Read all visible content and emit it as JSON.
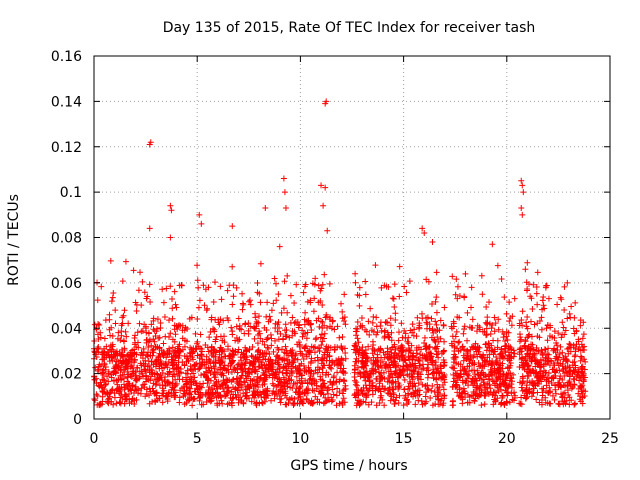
{
  "chart_data": {
    "type": "scatter",
    "title": "Day 135 of 2015, Rate Of TEC Index for receiver tash",
    "xlabel": "GPS time / hours",
    "ylabel": "ROTI / TECUs",
    "xlim": [
      0,
      25
    ],
    "ylim": [
      0,
      0.16
    ],
    "x_ticks": [
      "0",
      "5",
      "10",
      "15",
      "20",
      "25"
    ],
    "x_tick_values": [
      0,
      5,
      10,
      15,
      20,
      25
    ],
    "y_ticks": [
      "0",
      "0.02",
      "0.04",
      "0.06",
      "0.08",
      "0.1",
      "0.12",
      "0.14",
      "0.16"
    ],
    "y_tick_values": [
      0,
      0.02,
      0.04,
      0.06,
      0.08,
      0.1,
      0.12,
      0.14,
      0.16
    ],
    "grid": true,
    "marker": "+",
    "series": [
      {
        "name": "ROTI",
        "color": "#ff0000",
        "segments": [
          {
            "start": 0.0,
            "end": 12.2
          },
          {
            "start": 12.6,
            "end": 17.0
          },
          {
            "start": 17.3,
            "end": 20.4
          },
          {
            "start": 20.6,
            "end": 23.8
          }
        ],
        "outliers": [
          {
            "x": 2.7,
            "y": 0.121
          },
          {
            "x": 2.75,
            "y": 0.122
          },
          {
            "x": 11.2,
            "y": 0.139
          },
          {
            "x": 11.25,
            "y": 0.14
          },
          {
            "x": 9.2,
            "y": 0.106
          },
          {
            "x": 9.25,
            "y": 0.1
          },
          {
            "x": 9.3,
            "y": 0.093
          },
          {
            "x": 11.0,
            "y": 0.103
          },
          {
            "x": 11.1,
            "y": 0.094
          },
          {
            "x": 11.2,
            "y": 0.102
          },
          {
            "x": 20.7,
            "y": 0.105
          },
          {
            "x": 20.75,
            "y": 0.103
          },
          {
            "x": 20.8,
            "y": 0.1
          },
          {
            "x": 20.7,
            "y": 0.093
          },
          {
            "x": 20.75,
            "y": 0.09
          },
          {
            "x": 3.7,
            "y": 0.094
          },
          {
            "x": 3.75,
            "y": 0.092
          },
          {
            "x": 5.1,
            "y": 0.09
          },
          {
            "x": 8.3,
            "y": 0.093
          },
          {
            "x": 6.7,
            "y": 0.085
          },
          {
            "x": 2.7,
            "y": 0.084
          },
          {
            "x": 15.9,
            "y": 0.084
          },
          {
            "x": 16.0,
            "y": 0.082
          },
          {
            "x": 11.3,
            "y": 0.083
          },
          {
            "x": 5.2,
            "y": 0.086
          },
          {
            "x": 19.3,
            "y": 0.077
          },
          {
            "x": 9.0,
            "y": 0.076
          },
          {
            "x": 16.4,
            "y": 0.078
          },
          {
            "x": 3.7,
            "y": 0.08
          },
          {
            "x": 20.9,
            "y": 0.066
          }
        ]
      }
    ]
  }
}
